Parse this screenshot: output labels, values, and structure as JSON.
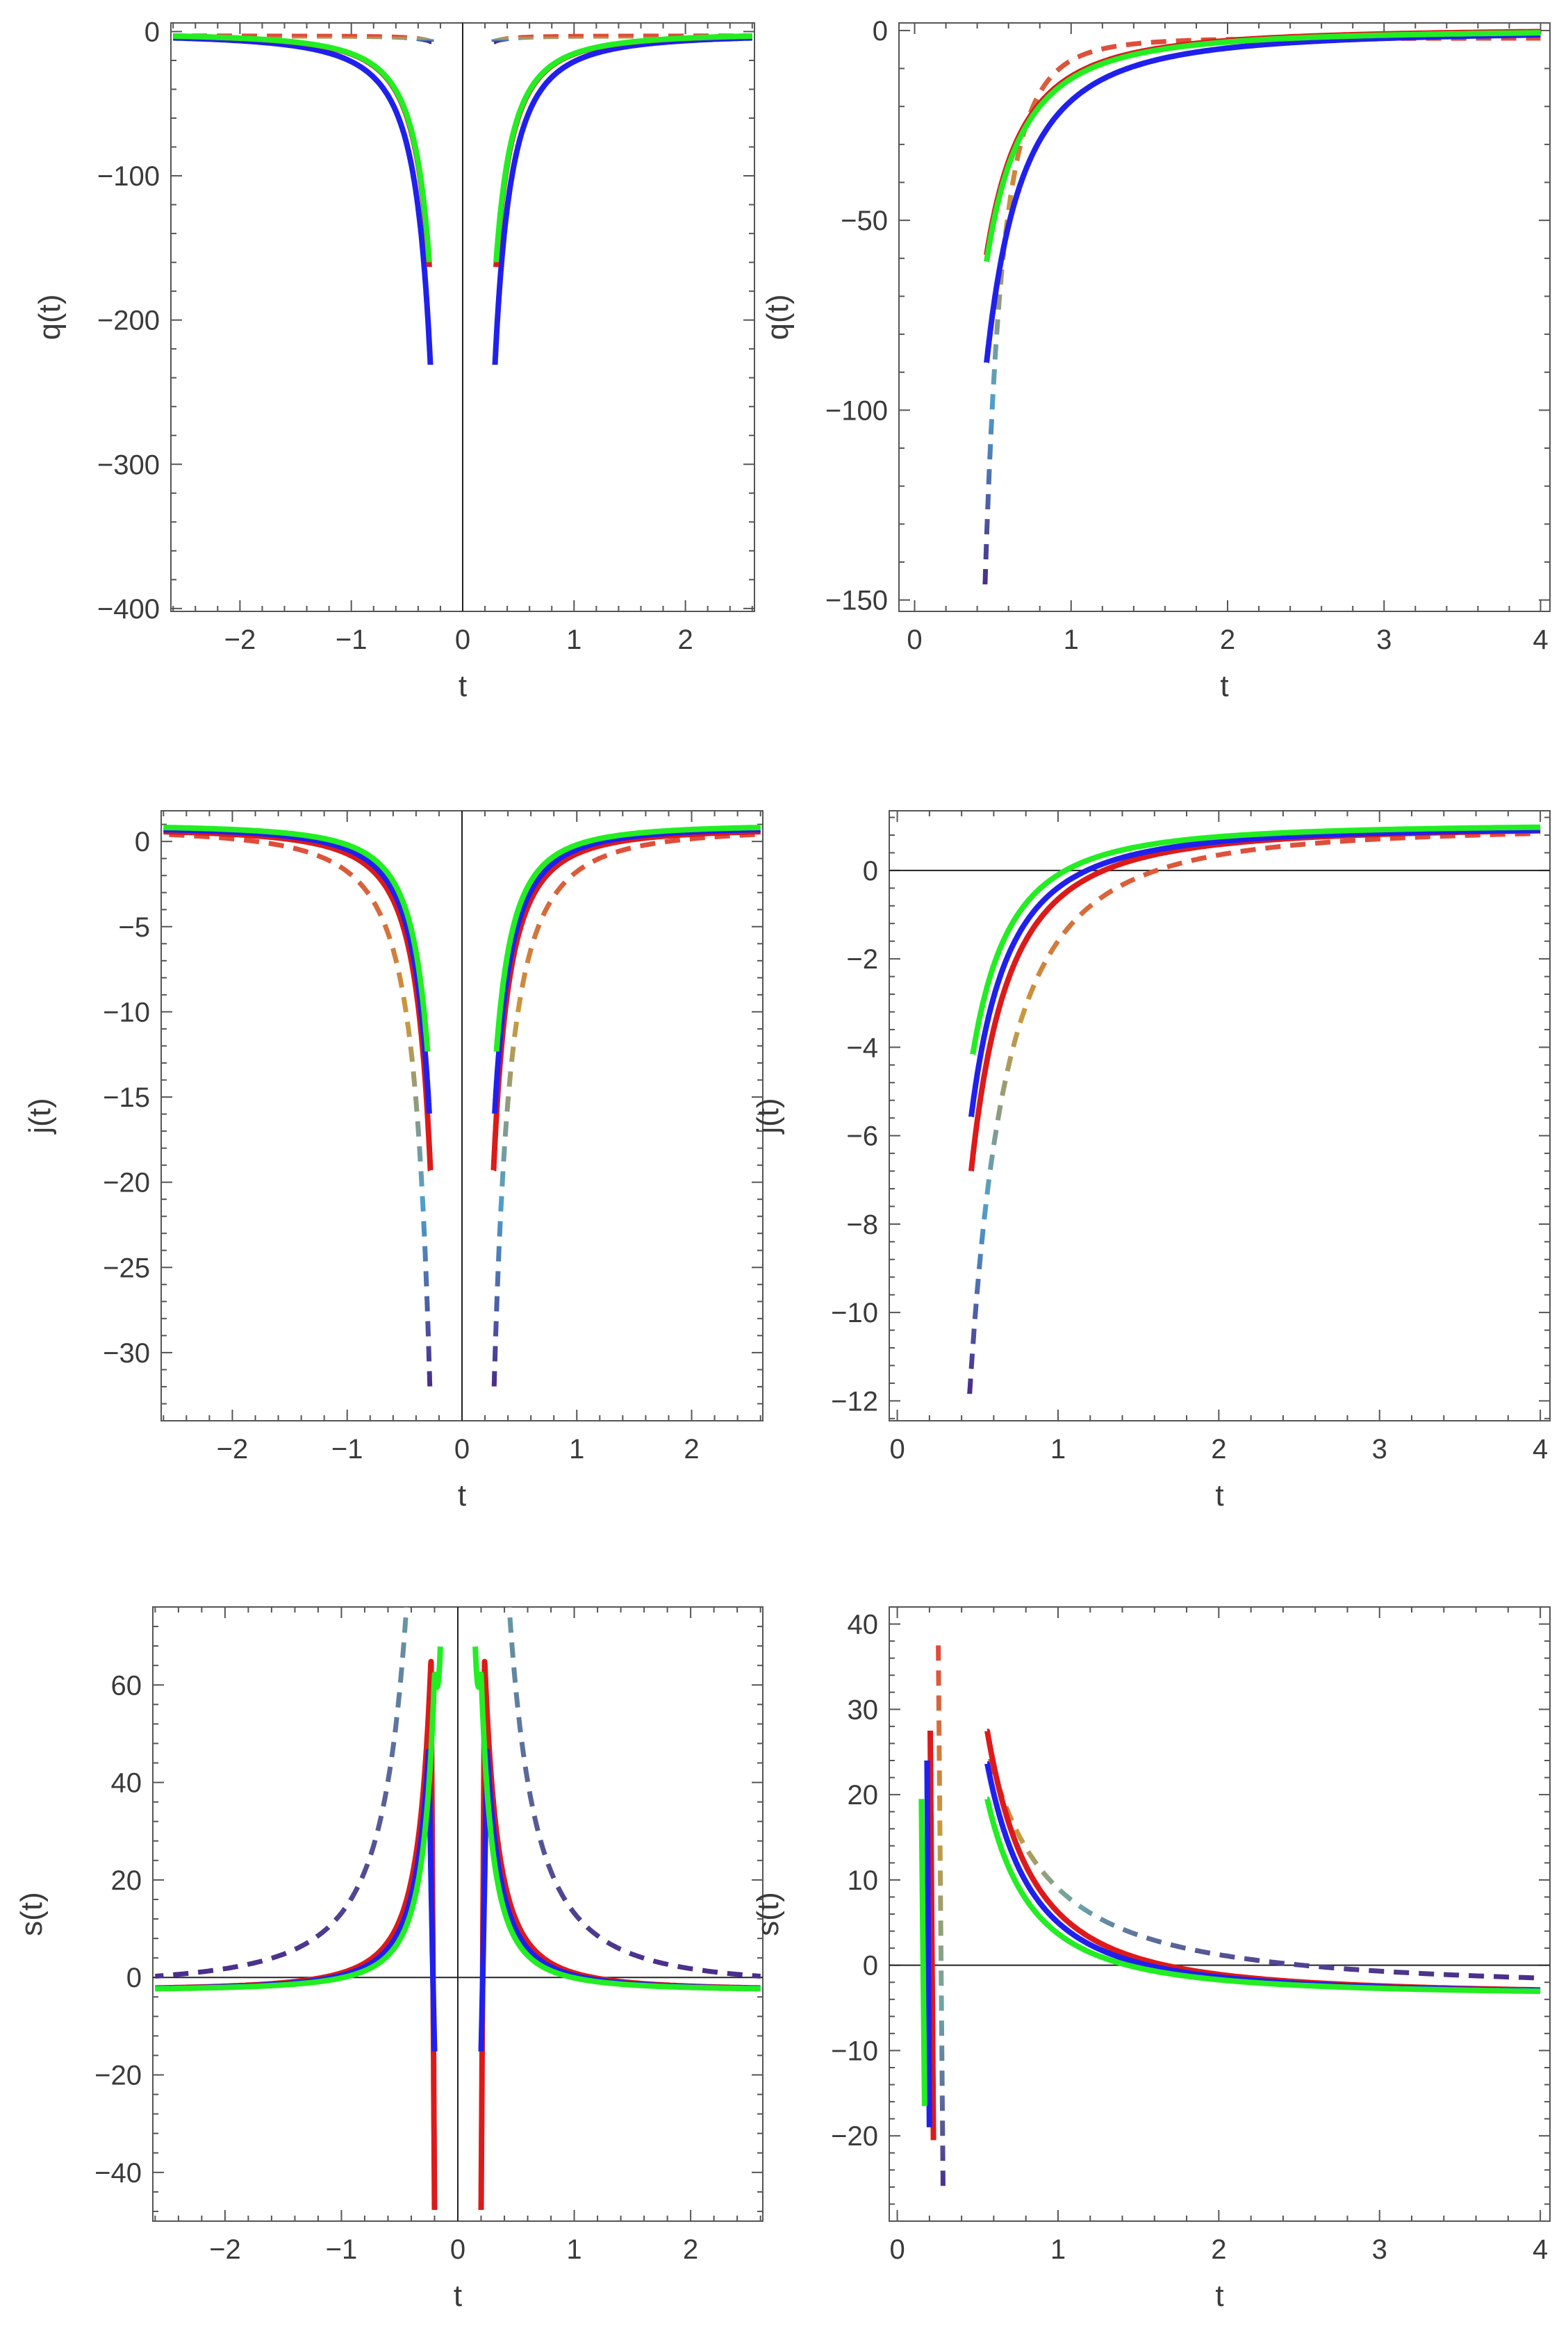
{
  "chart_data": [
    {
      "id": "q-sym",
      "type": "line",
      "xlabel": "t",
      "ylabel": "q(t)",
      "xlim": [
        -2.62,
        2.62
      ],
      "ylim": [
        -402,
        6
      ],
      "xticks": [
        -2,
        -1,
        0,
        1,
        2
      ],
      "xtick_labels": [
        "−2",
        "−1",
        "0",
        "1",
        "2"
      ],
      "yticks": [
        0,
        -100,
        -200,
        -300,
        -400
      ],
      "ytick_labels": [
        "0",
        "−100",
        "−200",
        "−300",
        "−400"
      ],
      "x_axis_line": false,
      "y_axis_line": true,
      "series": [
        {
          "style": "dashed",
          "colors": [
            "#e04a3a",
            "#c99a3c",
            "#4f9ec9",
            "#4a2d8c"
          ],
          "x_range": [
            0.28,
            2.6
          ],
          "symmetric": true,
          "func": "power",
          "A": -0.31,
          "p": 2,
          "c": -3
        },
        {
          "style": "solid",
          "color": "#2020ee",
          "x_range": [
            0.29,
            2.6
          ],
          "symmetric": true,
          "func": "power",
          "A": -19.3,
          "p": 2,
          "c": -1.5
        },
        {
          "style": "solid",
          "color": "#dd1a1a",
          "x_range": [
            0.3,
            2.6
          ],
          "symmetric": true,
          "func": "power",
          "A": -14.6,
          "p": 2,
          "c": -1
        },
        {
          "style": "solid",
          "color": "#22ee22",
          "x_range": [
            0.3,
            2.6
          ],
          "symmetric": true,
          "func": "power",
          "A": -14.3,
          "p": 2,
          "c": -1
        }
      ]
    },
    {
      "id": "q-pos",
      "type": "line",
      "xlabel": "t",
      "ylabel": "q(t)",
      "xlim": [
        -0.1,
        4.06
      ],
      "ylim": [
        -153,
        2
      ],
      "xticks": [
        0,
        1,
        2,
        3,
        4
      ],
      "xtick_labels": [
        "0",
        "1",
        "2",
        "3",
        "4"
      ],
      "yticks": [
        0,
        -50,
        -100,
        -150
      ],
      "ytick_labels": [
        "0",
        "−50",
        "−100",
        "−150"
      ],
      "x_axis_line": false,
      "y_axis_line": false,
      "series": [
        {
          "style": "dashed",
          "colors": [
            "#e04a3a",
            "#c99a3c",
            "#4f9ec9",
            "#4a2d8c"
          ],
          "x_range": [
            0.45,
            4.0
          ],
          "symmetric": false,
          "func": "power",
          "A": -5.9,
          "p": 4,
          "c": -2
        },
        {
          "style": "solid",
          "color": "#2020ee",
          "x_range": [
            0.46,
            4.0
          ],
          "symmetric": false,
          "func": "power",
          "A": -18.5,
          "p": 2,
          "c": 0
        },
        {
          "style": "solid",
          "color": "#dd1a1a",
          "x_range": [
            0.46,
            4.0
          ],
          "symmetric": false,
          "func": "power",
          "A": -12.6,
          "p": 2,
          "c": 0.5
        },
        {
          "style": "solid",
          "color": "#22ee22",
          "x_range": [
            0.46,
            4.0
          ],
          "symmetric": false,
          "func": "power",
          "A": -12.9,
          "p": 2,
          "c": 0.2
        }
      ]
    },
    {
      "id": "j-sym",
      "type": "line",
      "xlabel": "t",
      "ylabel": "j(t)",
      "xlim": [
        -2.62,
        2.62
      ],
      "ylim": [
        -34,
        1.8
      ],
      "xticks": [
        -2,
        -1,
        0,
        1,
        2
      ],
      "xtick_labels": [
        "−2",
        "−1",
        "0",
        "1",
        "2"
      ],
      "yticks": [
        0,
        -5,
        -10,
        -15,
        -20,
        -25,
        -30
      ],
      "ytick_labels": [
        "0",
        "−5",
        "−10",
        "−15",
        "−20",
        "−25",
        "−30"
      ],
      "x_axis_line": false,
      "y_axis_line": true,
      "series": [
        {
          "style": "dashed",
          "colors": [
            "#e04a3a",
            "#c99a3c",
            "#4f9ec9",
            "#4a2d8c"
          ],
          "x_range": [
            0.28,
            2.6
          ],
          "symmetric": true,
          "func": "power",
          "A": -2.57,
          "p": 2,
          "c": 0.8
        },
        {
          "style": "solid",
          "color": "#dd1a1a",
          "x_range": [
            0.275,
            2.6
          ],
          "symmetric": true,
          "func": "power",
          "A": -1.52,
          "p": 2,
          "c": 0.8
        },
        {
          "style": "solid",
          "color": "#2020ee",
          "x_range": [
            0.285,
            2.6
          ],
          "symmetric": true,
          "func": "power",
          "A": -1.37,
          "p": 2,
          "c": 0.9
        },
        {
          "style": "solid",
          "color": "#22ee22",
          "x_range": [
            0.3,
            2.6
          ],
          "symmetric": true,
          "func": "power",
          "A": -1.2,
          "p": 2,
          "c": 1.0
        }
      ]
    },
    {
      "id": "j-pos",
      "type": "line",
      "xlabel": "t",
      "ylabel": "j(t)",
      "xlim": [
        -0.05,
        4.06
      ],
      "ylim": [
        -12.45,
        1.35
      ],
      "xticks": [
        0,
        1,
        2,
        3,
        4
      ],
      "xtick_labels": [
        "0",
        "1",
        "2",
        "3",
        "4"
      ],
      "yticks": [
        0,
        -2,
        -4,
        -6,
        -8,
        -10,
        -12
      ],
      "ytick_labels": [
        "0",
        "−2",
        "−4",
        "−6",
        "−8",
        "−10",
        "−12"
      ],
      "x_axis_line": true,
      "y_axis_line": false,
      "series": [
        {
          "style": "dashed",
          "colors": [
            "#e04a3a",
            "#c99a3c",
            "#4f9ec9",
            "#4a2d8c"
          ],
          "x_range": [
            0.45,
            4.0
          ],
          "symmetric": false,
          "func": "power",
          "A": -2.6,
          "p": 2,
          "c": 1.0
        },
        {
          "style": "solid",
          "color": "#dd1a1a",
          "x_range": [
            0.46,
            4.0
          ],
          "symmetric": false,
          "func": "power",
          "A": -1.65,
          "p": 2,
          "c": 1.0
        },
        {
          "style": "solid",
          "color": "#2020ee",
          "x_range": [
            0.46,
            4.0
          ],
          "symmetric": false,
          "func": "power",
          "A": -1.39,
          "p": 2,
          "c": 1.0
        },
        {
          "style": "solid",
          "color": "#22ee22",
          "x_range": [
            0.47,
            4.0
          ],
          "symmetric": false,
          "func": "power",
          "A": -1.15,
          "p": 2,
          "c": 1.05
        }
      ]
    },
    {
      "id": "s-sym",
      "type": "line",
      "xlabel": "t",
      "ylabel": "s(t)",
      "xlim": [
        -2.62,
        2.62
      ],
      "ylim": [
        -50,
        76
      ],
      "xticks": [
        -2,
        -1,
        0,
        1,
        2
      ],
      "xtick_labels": [
        "−2",
        "−1",
        "0",
        "1",
        "2"
      ],
      "yticks": [
        60,
        40,
        20,
        0,
        -20,
        -40
      ],
      "ytick_labels": [
        "60",
        "40",
        "20",
        "0",
        "−20",
        "−40"
      ],
      "x_axis_line": true,
      "y_axis_line": true,
      "series": [
        {
          "style": "dashed",
          "colors": [
            "#e04a3a",
            "#c99a3c",
            "#6aa5a8",
            "#4a2d8c"
          ],
          "x_range": [
            0.23,
            2.6
          ],
          "symmetric": true,
          "func": "peak",
          "A": 15.2,
          "p": 2,
          "c": -2,
          "x0": 0.28,
          "x1": 0.23,
          "k": 1600,
          "cusp": 0.25
        },
        {
          "style": "solid",
          "color": "#dd1a1a",
          "x_range": [
            0.2,
            2.6
          ],
          "symmetric": true,
          "func": "peak",
          "A": 3.6,
          "p": 2,
          "c": -2.7,
          "x0": 0.235,
          "x1": 0.2,
          "k": 4500,
          "cusp": 0.23
        },
        {
          "style": "solid",
          "color": "#2020ee",
          "x_range": [
            0.2,
            2.6
          ],
          "symmetric": true,
          "func": "peak",
          "A": 3.1,
          "p": 2,
          "c": -2.7,
          "x0": 0.255,
          "x1": 0.2,
          "k": 1800,
          "cusp": 0.25
        },
        {
          "style": "solid",
          "color": "#22ee22",
          "x_range": [
            0.15,
            2.6
          ],
          "symmetric": true,
          "func": "peak",
          "A": 2.6,
          "p": 2,
          "c": -2.7,
          "x0": 0.26,
          "x1": 0.15,
          "k": 900,
          "cusp": 0.2
        }
      ]
    },
    {
      "id": "s-pos",
      "type": "line",
      "xlabel": "t",
      "ylabel": "s(t)",
      "xlim": [
        -0.05,
        4.06
      ],
      "ylim": [
        -30,
        42
      ],
      "xticks": [
        0,
        1,
        2,
        3,
        4
      ],
      "xtick_labels": [
        "0",
        "1",
        "2",
        "3",
        "4"
      ],
      "yticks": [
        40,
        30,
        20,
        10,
        0,
        -10,
        -20
      ],
      "ytick_labels": [
        "40",
        "30",
        "20",
        "10",
        "0",
        "−10",
        "−20"
      ],
      "x_axis_line": true,
      "y_axis_line": false,
      "series": [
        {
          "style": "dashed",
          "colors": [
            "#e04a3a",
            "#c99a3c",
            "#6aa5a8",
            "#4a2d8c"
          ],
          "x_range": [
            0.58,
            4.0
          ],
          "symmetric": false,
          "func": "power",
          "A": 12.0,
          "p": 1.5,
          "c": -3.0
        },
        {
          "style": "dashed",
          "colors": [
            "#e04a3a",
            "#c99a3c",
            "#6aa5a8",
            "#4a2d8c"
          ],
          "x_range": [
            0.255,
            0.285
          ],
          "symmetric": false,
          "func": "linear",
          "y_range": [
            -26.5,
            37.5
          ]
        },
        {
          "style": "solid",
          "color": "#dd1a1a",
          "x_range": [
            0.56,
            4.0
          ],
          "symmetric": false,
          "func": "power",
          "A": 9.7,
          "p": 2,
          "c": -3.5
        },
        {
          "style": "solid",
          "color": "#dd1a1a",
          "x_range": [
            0.205,
            0.225
          ],
          "symmetric": false,
          "func": "linear",
          "y_range": [
            -20.5,
            27.5
          ]
        },
        {
          "style": "solid",
          "color": "#2020ee",
          "x_range": [
            0.56,
            4.0
          ],
          "symmetric": false,
          "func": "power",
          "A": 8.5,
          "p": 2,
          "c": -3.5
        },
        {
          "style": "solid",
          "color": "#2020ee",
          "x_range": [
            0.185,
            0.2
          ],
          "symmetric": false,
          "func": "linear",
          "y_range": [
            -19,
            24
          ]
        },
        {
          "style": "solid",
          "color": "#22ee22",
          "x_range": [
            0.56,
            4.0
          ],
          "symmetric": false,
          "func": "power",
          "A": 7.2,
          "p": 2,
          "c": -3.5
        },
        {
          "style": "solid",
          "color": "#22ee22",
          "x_range": [
            0.15,
            0.17
          ],
          "symmetric": false,
          "func": "linear",
          "y_range": [
            -16.5,
            19.5
          ]
        }
      ]
    }
  ]
}
